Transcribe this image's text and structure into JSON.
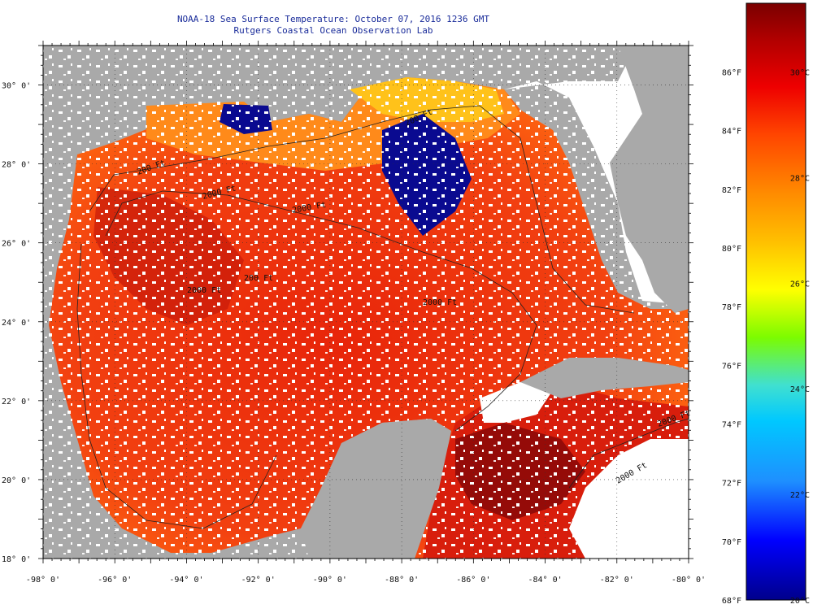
{
  "title": {
    "line1": "NOAA-18 Sea Surface Temperature:  October 07, 2016 1236 GMT",
    "line2": "Rutgers Coastal Ocean Observation Lab"
  },
  "map": {
    "lat_range": [
      18,
      31
    ],
    "lon_range": [
      -98,
      -80
    ],
    "lat_tick_labels": [
      "30° 0'",
      "28° 0'",
      "26° 0'",
      "24° 0'",
      "22° 0'",
      "20° 0'",
      "18° 0'"
    ],
    "lat_ticks": [
      30,
      28,
      26,
      24,
      22,
      20,
      18
    ],
    "lon_tick_labels": [
      "-98° 0'",
      "-96° 0'",
      "-94° 0'",
      "-92° 0'",
      "-90° 0'",
      "-88° 0'",
      "-86° 0'",
      "-84° 0'",
      "-82° 0'",
      "-80° 0'"
    ],
    "lon_ticks": [
      -98,
      -96,
      -94,
      -92,
      -90,
      -88,
      -86,
      -84,
      -82,
      -80
    ],
    "land_color": "#a9a9a9",
    "cloud_color": "#ffffff",
    "contour_labels": [
      "200 Ft",
      "200 Ft",
      "2000 Ft",
      "2000 Ft",
      "2000 Ft",
      "2000 Ft",
      "200 Ft",
      "2000 Ft",
      "2000 Ft"
    ]
  },
  "colorbar": {
    "fahrenheit_labels": [
      "86°F",
      "84°F",
      "82°F",
      "80°F",
      "78°F",
      "76°F",
      "74°F",
      "72°F",
      "70°F",
      "68°F"
    ],
    "fahrenheit_values": [
      86,
      84,
      82,
      80,
      78,
      76,
      74,
      72,
      70,
      68
    ],
    "celsius_labels": [
      "30°C",
      "28°C",
      "26°C",
      "24°C",
      "22°C",
      "20°C"
    ],
    "celsius_values": [
      30,
      28,
      26,
      24,
      22,
      20
    ],
    "range_celsius": [
      20,
      31.3
    ],
    "colors": [
      "#00008b",
      "#0000ff",
      "#1e90ff",
      "#00c8ff",
      "#40e0d0",
      "#7cfc00",
      "#ffff00",
      "#ffc000",
      "#ff8c00",
      "#ff4500",
      "#ee0000",
      "#b00000",
      "#7a0000"
    ]
  }
}
